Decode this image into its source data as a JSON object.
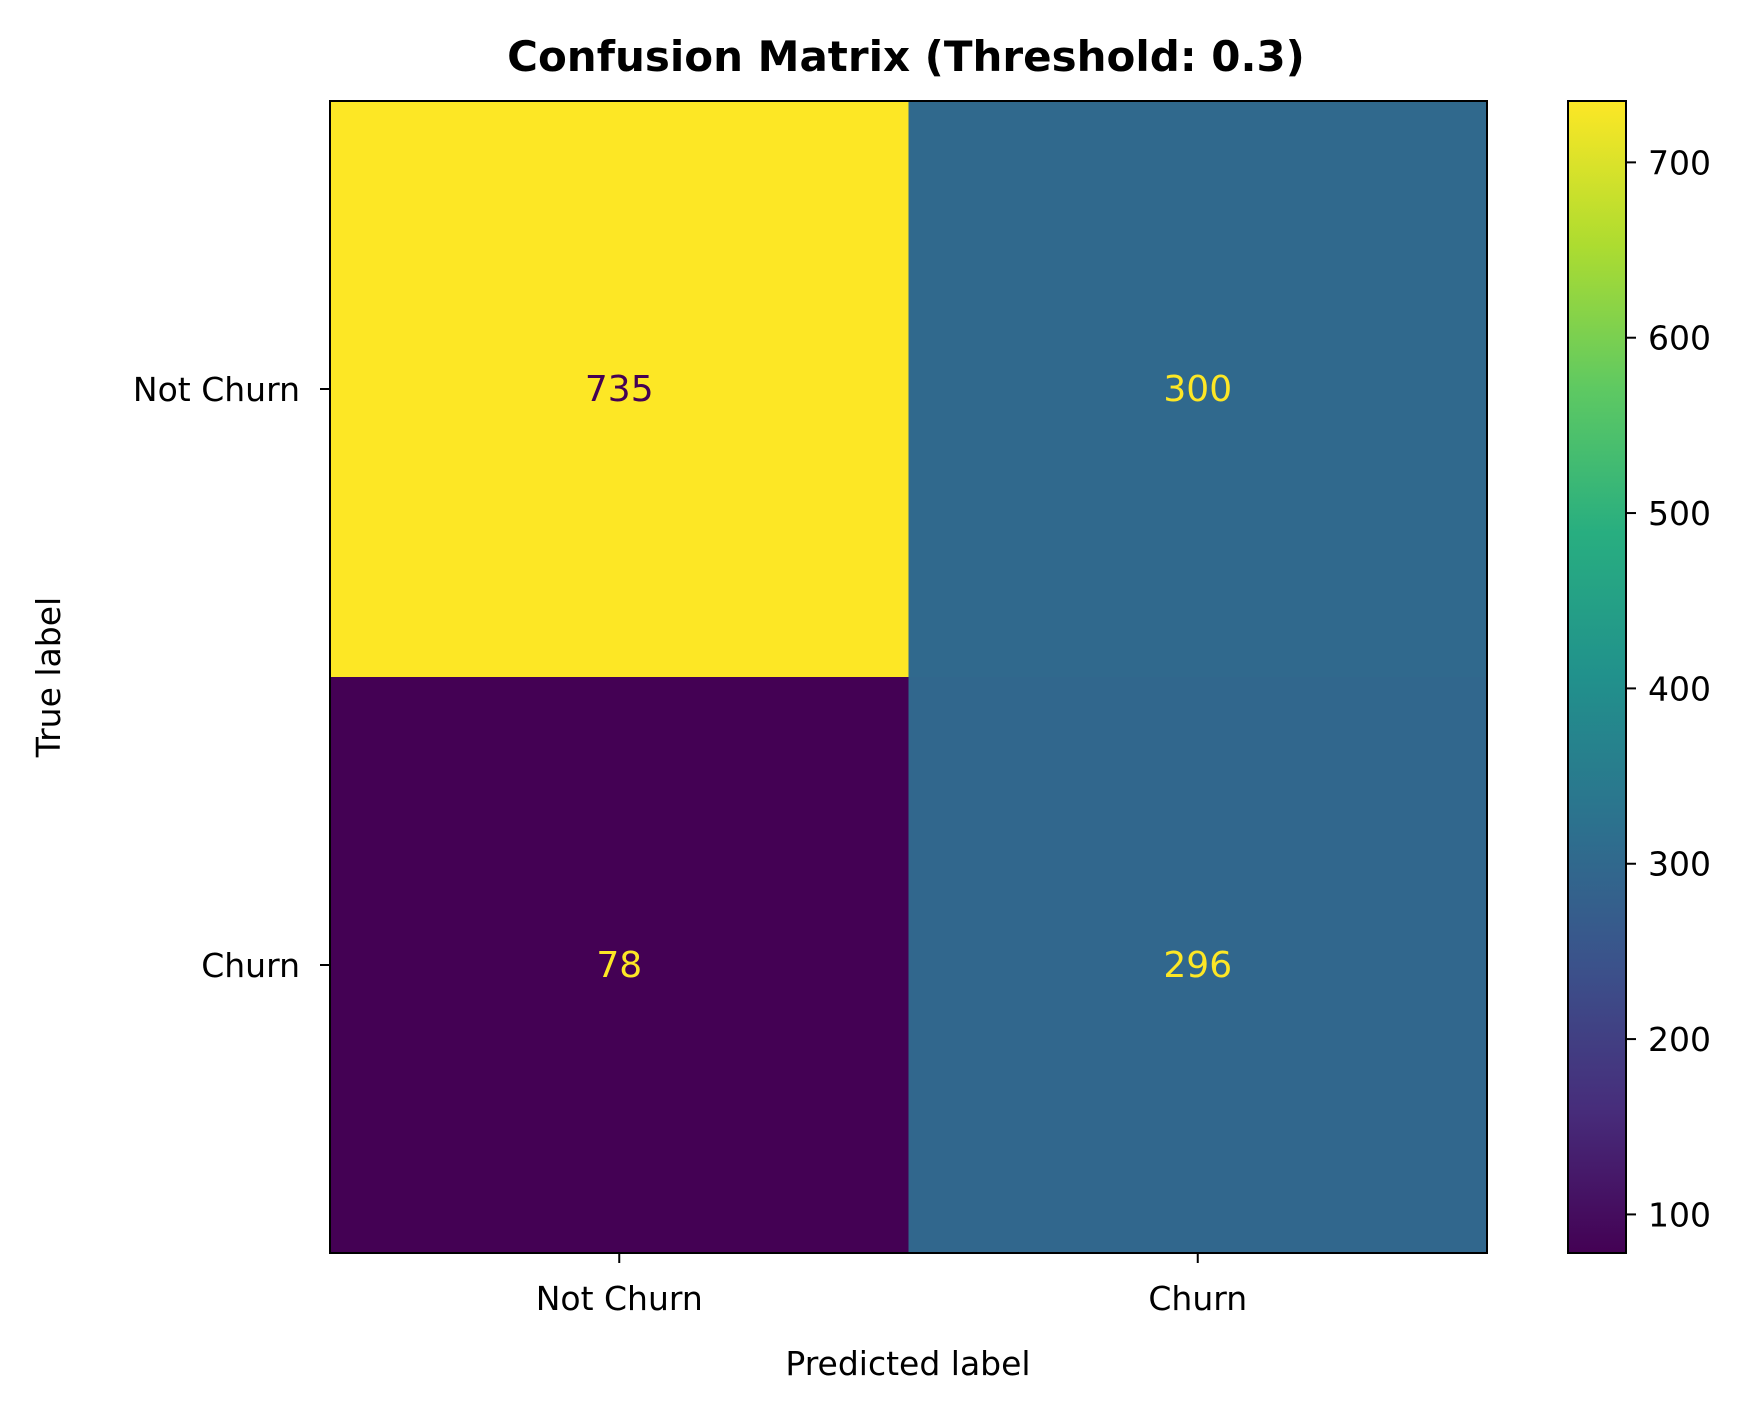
{
  "chart_data": {
    "type": "heatmap",
    "title": "Confusion Matrix (Threshold: 0.3)",
    "xlabel": "Predicted label",
    "ylabel": "True label",
    "x_categories": [
      "Not Churn",
      "Churn"
    ],
    "y_categories": [
      "Not Churn",
      "Churn"
    ],
    "values": [
      [
        735,
        300
      ],
      [
        78,
        296
      ]
    ],
    "colormap": "viridis",
    "colorbar": {
      "range": [
        78,
        735
      ],
      "ticks": [
        100,
        200,
        300,
        400,
        500,
        600,
        700
      ],
      "tick_labels": [
        "100",
        "200",
        "300",
        "400",
        "500",
        "600",
        "700"
      ]
    },
    "grid": false,
    "text_colors": {
      "on_dark": "#fde725",
      "on_light": "#440154"
    }
  }
}
